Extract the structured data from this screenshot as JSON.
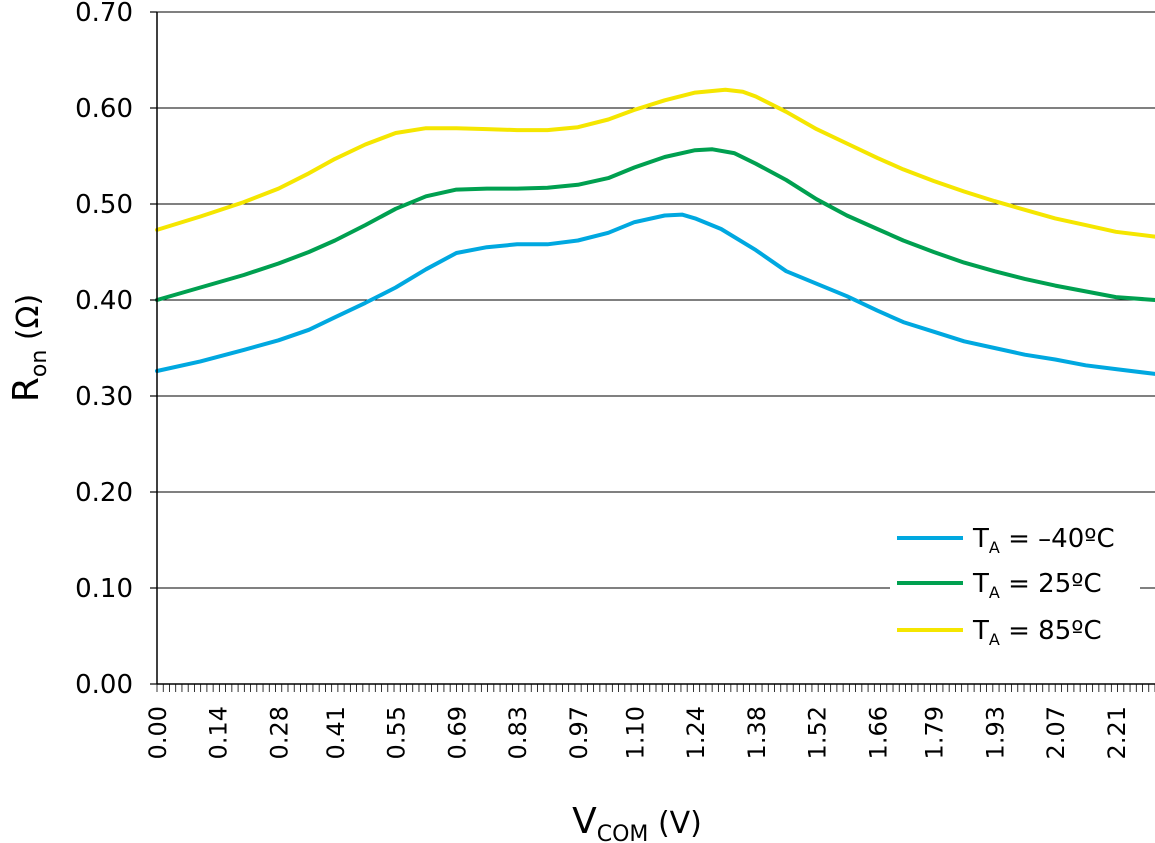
{
  "chart_data": {
    "type": "line",
    "ylabel": {
      "main": "R",
      "sub": "on",
      "unit": " (Ω)"
    },
    "xlabel": {
      "main": "V",
      "sub": "COM",
      "unit": " (V)"
    },
    "ylim": [
      0,
      0.7
    ],
    "xlim": [
      0,
      2.3
    ],
    "y_ticks": [
      0.0,
      0.1,
      0.2,
      0.3,
      0.4,
      0.5,
      0.6,
      0.7
    ],
    "y_tick_labels": [
      "0.00",
      "0.10",
      "0.20",
      "0.30",
      "0.40",
      "0.50",
      "0.60",
      "0.70"
    ],
    "x_ticks": [
      0.0,
      0.14,
      0.28,
      0.41,
      0.55,
      0.69,
      0.83,
      0.97,
      1.1,
      1.24,
      1.38,
      1.52,
      1.66,
      1.79,
      1.93,
      2.07,
      2.21
    ],
    "x_tick_labels": [
      "0.00",
      "0.14",
      "0.28",
      "0.41",
      "0.55",
      "0.69",
      "0.83",
      "0.97",
      "1.10",
      "1.24",
      "1.38",
      "1.52",
      "1.66",
      "1.79",
      "1.93",
      "2.07",
      "2.21"
    ],
    "grid": "horizontal",
    "legend_position": "bottom-right",
    "series": [
      {
        "name": "T_A = –40°C",
        "label_main": "T",
        "label_sub": "A",
        "label_rest": " = –40ºC",
        "color": "#00a8e0",
        "points": [
          [
            0.0,
            0.326
          ],
          [
            0.1,
            0.336
          ],
          [
            0.2,
            0.348
          ],
          [
            0.28,
            0.358
          ],
          [
            0.35,
            0.369
          ],
          [
            0.41,
            0.382
          ],
          [
            0.48,
            0.397
          ],
          [
            0.55,
            0.413
          ],
          [
            0.62,
            0.432
          ],
          [
            0.69,
            0.449
          ],
          [
            0.76,
            0.455
          ],
          [
            0.83,
            0.458
          ],
          [
            0.9,
            0.458
          ],
          [
            0.97,
            0.462
          ],
          [
            1.04,
            0.47
          ],
          [
            1.1,
            0.481
          ],
          [
            1.17,
            0.488
          ],
          [
            1.21,
            0.489
          ],
          [
            1.24,
            0.485
          ],
          [
            1.3,
            0.474
          ],
          [
            1.38,
            0.452
          ],
          [
            1.45,
            0.43
          ],
          [
            1.52,
            0.417
          ],
          [
            1.59,
            0.404
          ],
          [
            1.66,
            0.389
          ],
          [
            1.72,
            0.377
          ],
          [
            1.79,
            0.367
          ],
          [
            1.86,
            0.357
          ],
          [
            1.93,
            0.35
          ],
          [
            2.0,
            0.343
          ],
          [
            2.07,
            0.338
          ],
          [
            2.14,
            0.332
          ],
          [
            2.21,
            0.328
          ],
          [
            2.3,
            0.323
          ]
        ]
      },
      {
        "name": "T_A = 25°C",
        "label_main": "T",
        "label_sub": "A",
        "label_rest": " = 25ºC",
        "color": "#00a050",
        "points": [
          [
            0.0,
            0.4
          ],
          [
            0.1,
            0.413
          ],
          [
            0.2,
            0.426
          ],
          [
            0.28,
            0.438
          ],
          [
            0.35,
            0.45
          ],
          [
            0.41,
            0.462
          ],
          [
            0.48,
            0.478
          ],
          [
            0.55,
            0.495
          ],
          [
            0.62,
            0.508
          ],
          [
            0.69,
            0.515
          ],
          [
            0.76,
            0.516
          ],
          [
            0.83,
            0.516
          ],
          [
            0.9,
            0.517
          ],
          [
            0.97,
            0.52
          ],
          [
            1.04,
            0.527
          ],
          [
            1.1,
            0.538
          ],
          [
            1.17,
            0.549
          ],
          [
            1.24,
            0.556
          ],
          [
            1.28,
            0.557
          ],
          [
            1.33,
            0.553
          ],
          [
            1.38,
            0.542
          ],
          [
            1.45,
            0.525
          ],
          [
            1.52,
            0.505
          ],
          [
            1.59,
            0.488
          ],
          [
            1.66,
            0.474
          ],
          [
            1.72,
            0.462
          ],
          [
            1.79,
            0.45
          ],
          [
            1.86,
            0.439
          ],
          [
            1.93,
            0.43
          ],
          [
            2.0,
            0.422
          ],
          [
            2.07,
            0.415
          ],
          [
            2.14,
            0.409
          ],
          [
            2.21,
            0.403
          ],
          [
            2.3,
            0.4
          ]
        ]
      },
      {
        "name": "T_A = 85°C",
        "label_main": "T",
        "label_sub": "A",
        "label_rest": " = 85ºC",
        "color": "#f5e600",
        "points": [
          [
            0.0,
            0.473
          ],
          [
            0.1,
            0.487
          ],
          [
            0.2,
            0.502
          ],
          [
            0.28,
            0.516
          ],
          [
            0.35,
            0.532
          ],
          [
            0.41,
            0.547
          ],
          [
            0.48,
            0.562
          ],
          [
            0.55,
            0.574
          ],
          [
            0.62,
            0.579
          ],
          [
            0.69,
            0.579
          ],
          [
            0.76,
            0.578
          ],
          [
            0.83,
            0.577
          ],
          [
            0.9,
            0.577
          ],
          [
            0.97,
            0.58
          ],
          [
            1.04,
            0.588
          ],
          [
            1.1,
            0.598
          ],
          [
            1.17,
            0.608
          ],
          [
            1.24,
            0.616
          ],
          [
            1.31,
            0.619
          ],
          [
            1.35,
            0.617
          ],
          [
            1.38,
            0.612
          ],
          [
            1.45,
            0.596
          ],
          [
            1.52,
            0.578
          ],
          [
            1.59,
            0.563
          ],
          [
            1.66,
            0.548
          ],
          [
            1.72,
            0.536
          ],
          [
            1.79,
            0.524
          ],
          [
            1.86,
            0.513
          ],
          [
            1.93,
            0.503
          ],
          [
            2.0,
            0.494
          ],
          [
            2.07,
            0.485
          ],
          [
            2.14,
            0.478
          ],
          [
            2.21,
            0.471
          ],
          [
            2.3,
            0.466
          ]
        ]
      }
    ]
  }
}
